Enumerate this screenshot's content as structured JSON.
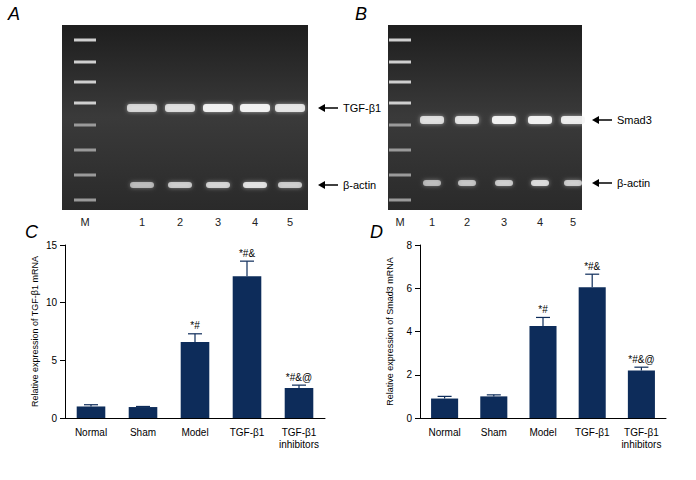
{
  "panels": [
    {
      "label": "A",
      "type": "gel",
      "lanes": [
        "M",
        "1",
        "2",
        "3",
        "4",
        "5"
      ],
      "bands": [
        "TGF-β1",
        "β-actin"
      ]
    },
    {
      "label": "B",
      "type": "gel",
      "lanes": [
        "M",
        "1",
        "2",
        "3",
        "4",
        "5"
      ],
      "bands": [
        "Smad3",
        "β-actin"
      ]
    }
  ],
  "chart_data": [
    {
      "label": "C",
      "type": "bar",
      "y_label": "Relative expression of TGF-β1 mRNA",
      "categories": [
        "Normal",
        "Sham",
        "Model",
        "TGF-β1",
        "TGF-β1\ninhibitors"
      ],
      "values": [
        1.0,
        0.95,
        6.6,
        12.3,
        2.6
      ],
      "errors": [
        0.15,
        0.05,
        0.7,
        1.3,
        0.25
      ],
      "annotations": [
        null,
        null,
        "*#",
        "*#&",
        "*#&@"
      ],
      "color": "#0d2c5a",
      "ylim": [
        0,
        15
      ],
      "yticks": [
        0,
        5,
        10,
        15
      ],
      "grid": false
    },
    {
      "label": "D",
      "type": "bar",
      "y_label": "Relative expression of Smad3 mRNA",
      "categories": [
        "Normal",
        "Sham",
        "Model",
        "TGF-β1",
        "TGF-β1\ninhibitors"
      ],
      "values": [
        0.9,
        1.0,
        4.25,
        6.05,
        2.2
      ],
      "errors": [
        0.1,
        0.07,
        0.4,
        0.6,
        0.15
      ],
      "annotations": [
        null,
        null,
        "*#",
        "*#&",
        "*#&@"
      ],
      "color": "#0d2c5a",
      "ylim": [
        0,
        8
      ],
      "yticks": [
        0,
        2,
        4,
        6,
        8
      ],
      "grid": false
    }
  ]
}
